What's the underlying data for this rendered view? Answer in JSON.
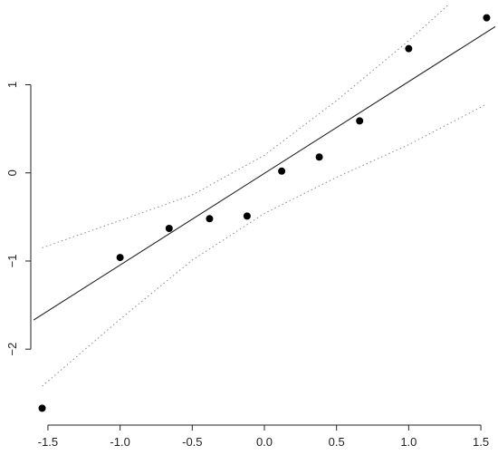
{
  "chart_data": {
    "type": "scatter",
    "title": "",
    "xlabel": "",
    "ylabel": "",
    "xlim": [
      -1.6,
      1.6
    ],
    "ylim": [
      -2.8,
      1.9
    ],
    "x_ticks": [
      -1.5,
      -1.0,
      -0.5,
      0.0,
      0.5,
      1.0,
      1.5
    ],
    "x_tick_labels": [
      "-1.5",
      "-1.0",
      "-0.5",
      "0.0",
      "0.5",
      "1.0",
      "1.5"
    ],
    "y_ticks": [
      -2,
      -1,
      0,
      1
    ],
    "y_tick_labels": [
      "−2",
      "−1",
      "0",
      "1"
    ],
    "points": [
      {
        "x": -1.54,
        "y": -2.67
      },
      {
        "x": -1.0,
        "y": -0.96
      },
      {
        "x": -0.66,
        "y": -0.63
      },
      {
        "x": -0.38,
        "y": -0.52
      },
      {
        "x": -0.12,
        "y": -0.49
      },
      {
        "x": 0.12,
        "y": 0.02
      },
      {
        "x": 0.38,
        "y": 0.18
      },
      {
        "x": 0.66,
        "y": 0.59
      },
      {
        "x": 1.0,
        "y": 1.41
      },
      {
        "x": 1.54,
        "y": 1.76
      }
    ],
    "fit_line": [
      {
        "x": -1.6,
        "y": -1.67
      },
      {
        "x": 1.6,
        "y": 1.66
      }
    ],
    "confidence_band_upper": [
      {
        "x": -1.54,
        "y": -0.85
      },
      {
        "x": -1.0,
        "y": -0.54
      },
      {
        "x": -0.5,
        "y": -0.25
      },
      {
        "x": 0.0,
        "y": 0.2
      },
      {
        "x": 0.5,
        "y": 0.82
      },
      {
        "x": 1.0,
        "y": 1.5
      },
      {
        "x": 1.54,
        "y": 2.3
      }
    ],
    "confidence_band_lower": [
      {
        "x": -1.54,
        "y": -2.42
      },
      {
        "x": -1.0,
        "y": -1.66
      },
      {
        "x": -0.5,
        "y": -0.99
      },
      {
        "x": 0.0,
        "y": -0.46
      },
      {
        "x": 0.5,
        "y": -0.05
      },
      {
        "x": 1.0,
        "y": 0.32
      },
      {
        "x": 1.54,
        "y": 0.78
      }
    ],
    "grid": false,
    "legend": "none",
    "colors": {
      "points": "#000000",
      "fit_line": "#222222",
      "band": "#8a8a8a",
      "axes": "#222222"
    }
  }
}
